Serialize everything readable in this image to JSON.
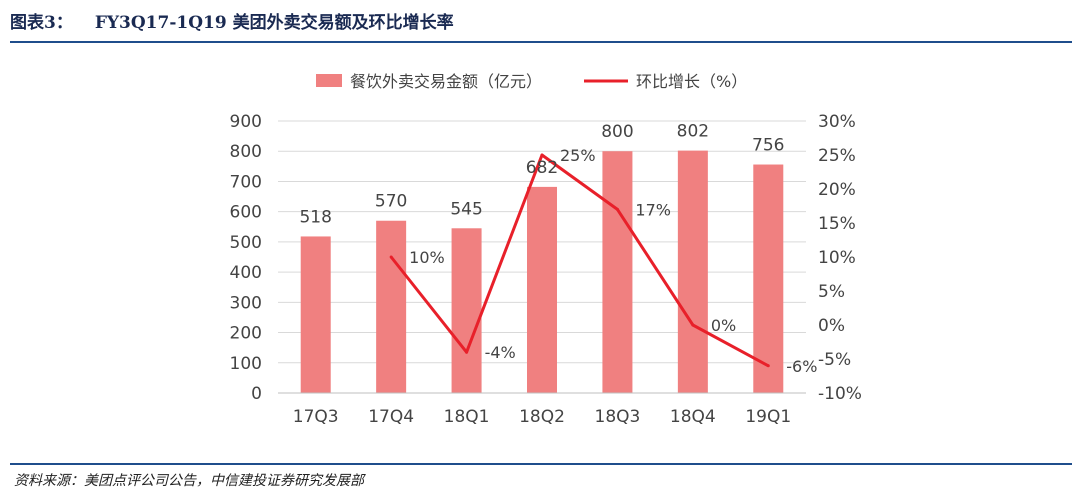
{
  "figure": {
    "label": "图表3：",
    "title": "FY3Q17-1Q19 美团外卖交易额及环比增长率",
    "source": "资料来源：美团点评公司公告，中信建投证券研究发展部"
  },
  "chart_data": {
    "type": "bar",
    "categories": [
      "17Q3",
      "17Q4",
      "18Q1",
      "18Q2",
      "18Q3",
      "18Q4",
      "19Q1"
    ],
    "series": [
      {
        "name": "餐饮外卖交易金额（亿元）",
        "type": "bar",
        "axis": "left",
        "values": [
          518,
          570,
          545,
          682,
          800,
          802,
          756
        ],
        "labels": [
          "518",
          "570",
          "545",
          "682",
          "800",
          "802",
          "756"
        ],
        "color": "#f08080"
      },
      {
        "name": "环比增长（%）",
        "type": "line",
        "axis": "right",
        "values": [
          null,
          10,
          -4,
          25,
          17,
          0,
          -6
        ],
        "labels": [
          "",
          "10%",
          "-4%",
          "25%",
          "17%",
          "0%",
          "-6%"
        ],
        "color": "#e8202a"
      }
    ],
    "y_left": {
      "ylim": [
        0,
        900
      ],
      "ticks": [
        "0",
        "100",
        "200",
        "300",
        "400",
        "500",
        "600",
        "700",
        "800",
        "900"
      ]
    },
    "y_right": {
      "ylim": [
        -10,
        30
      ],
      "ticks": [
        "-10%",
        "-5%",
        "0%",
        "5%",
        "10%",
        "15%",
        "20%",
        "25%",
        "30%"
      ]
    },
    "grid": true,
    "legend": "top-center"
  }
}
